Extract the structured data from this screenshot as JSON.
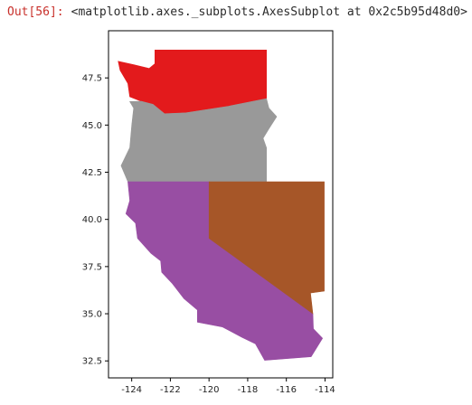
{
  "output": {
    "prompt": "Out[56]:",
    "repr": "<matplotlib.axes._subplots.AxesSubplot at 0x2c5b95d48d0>"
  },
  "chart_data": {
    "type": "map",
    "projection": "lon-lat (plate carree)",
    "xlim": [
      -125.2,
      -113.6
    ],
    "ylim": [
      31.6,
      50.0
    ],
    "xticks": [
      -124,
      -122,
      -120,
      -118,
      -116,
      -114
    ],
    "xtick_labels": [
      "-124",
      "-122",
      "-120",
      "-118",
      "-116",
      "-114"
    ],
    "yticks": [
      32.5,
      35.0,
      37.5,
      40.0,
      42.5,
      45.0,
      47.5
    ],
    "ytick_labels": [
      "32.5",
      "35.0",
      "37.5",
      "40.0",
      "42.5",
      "45.0",
      "47.5"
    ],
    "grid": false,
    "legend": "none",
    "regions": [
      {
        "color": "#e31a1c",
        "polygon": [
          [
            -124.7,
            48.38
          ],
          [
            -123.9,
            48.2
          ],
          [
            -123.1,
            48.0
          ],
          [
            -122.8,
            48.25
          ],
          [
            -122.8,
            48.98
          ],
          [
            -117.03,
            48.98
          ],
          [
            -117.03,
            46.4
          ],
          [
            -119.0,
            46.0
          ],
          [
            -121.2,
            45.65
          ],
          [
            -122.3,
            45.6
          ],
          [
            -122.9,
            46.1
          ],
          [
            -123.5,
            46.26
          ],
          [
            -124.1,
            46.5
          ],
          [
            -124.2,
            47.2
          ],
          [
            -124.6,
            47.9
          ]
        ]
      },
      {
        "color": "#999999",
        "polygon": [
          [
            -124.1,
            46.25
          ],
          [
            -123.5,
            46.26
          ],
          [
            -122.9,
            46.1
          ],
          [
            -122.3,
            45.6
          ],
          [
            -121.2,
            45.65
          ],
          [
            -119.0,
            46.0
          ],
          [
            -117.03,
            46.4
          ],
          [
            -116.9,
            45.9
          ],
          [
            -116.5,
            45.45
          ],
          [
            -116.9,
            44.8
          ],
          [
            -117.2,
            44.3
          ],
          [
            -117.03,
            43.8
          ],
          [
            -117.03,
            42.0
          ],
          [
            -124.2,
            42.0
          ],
          [
            -124.55,
            42.85
          ],
          [
            -124.1,
            43.8
          ],
          [
            -124.0,
            45.0
          ],
          [
            -123.9,
            45.9
          ]
        ]
      },
      {
        "color": "#984ea3",
        "polygon": [
          [
            -124.2,
            42.0
          ],
          [
            -120.0,
            42.0
          ],
          [
            -120.0,
            39.0
          ],
          [
            -114.63,
            35.0
          ],
          [
            -114.6,
            34.2
          ],
          [
            -114.13,
            33.7
          ],
          [
            -114.72,
            32.72
          ],
          [
            -117.12,
            32.53
          ],
          [
            -117.6,
            33.4
          ],
          [
            -118.3,
            33.75
          ],
          [
            -119.3,
            34.3
          ],
          [
            -120.6,
            34.55
          ],
          [
            -120.6,
            35.2
          ],
          [
            -121.3,
            35.8
          ],
          [
            -121.9,
            36.6
          ],
          [
            -122.45,
            37.2
          ],
          [
            -122.5,
            37.8
          ],
          [
            -123.0,
            38.2
          ],
          [
            -123.7,
            39.0
          ],
          [
            -123.8,
            39.8
          ],
          [
            -124.3,
            40.3
          ],
          [
            -124.1,
            41.0
          ]
        ]
      },
      {
        "color": "#a65628",
        "polygon": [
          [
            -120.0,
            42.0
          ],
          [
            -114.04,
            42.0
          ],
          [
            -114.04,
            36.2
          ],
          [
            -114.75,
            36.1
          ],
          [
            -114.63,
            35.0
          ],
          [
            -120.0,
            39.0
          ]
        ]
      }
    ]
  }
}
